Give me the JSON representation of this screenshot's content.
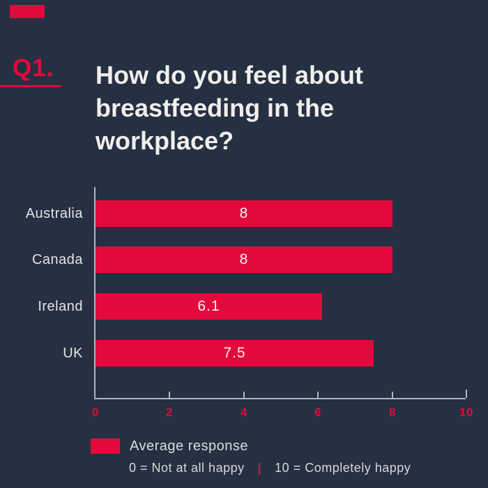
{
  "question_number": "Q1.",
  "title": {
    "lines": [
      "How do you feel about",
      "breastfeeding in the",
      "workplace?"
    ]
  },
  "chart_data": {
    "type": "bar",
    "orientation": "horizontal",
    "title": "How do you feel about breastfeeding in the workplace?",
    "categories": [
      "Australia",
      "Canada",
      "Ireland",
      "UK"
    ],
    "values": [
      8,
      8,
      6.1,
      7.5
    ],
    "value_labels": [
      "8",
      "8",
      "6.1",
      "7.5"
    ],
    "series_name": "Average response",
    "xlim": [
      0,
      10
    ],
    "xticks": [
      0,
      2,
      4,
      6,
      8,
      10
    ],
    "grid": false,
    "legend_position": "bottom",
    "bar_color": "#e4093c",
    "scale_min_label": "0 = Not at all happy",
    "scale_max_label": "10 = Completely happy"
  },
  "legend": {
    "label": "Average response"
  },
  "scale_note": {
    "min": "0 = Not at all happy",
    "separator": "|",
    "max": "10 = Completely happy"
  },
  "colors": {
    "background": "#253042",
    "accent_red": "#e4093c",
    "title_text": "#f1efec",
    "category_text": "#e3e4e7",
    "bar_value_text": "#f8f6f4",
    "axis_line": "#b0b6c0",
    "tick_label": "#e4093c",
    "legend_text": "#d9dbde"
  }
}
